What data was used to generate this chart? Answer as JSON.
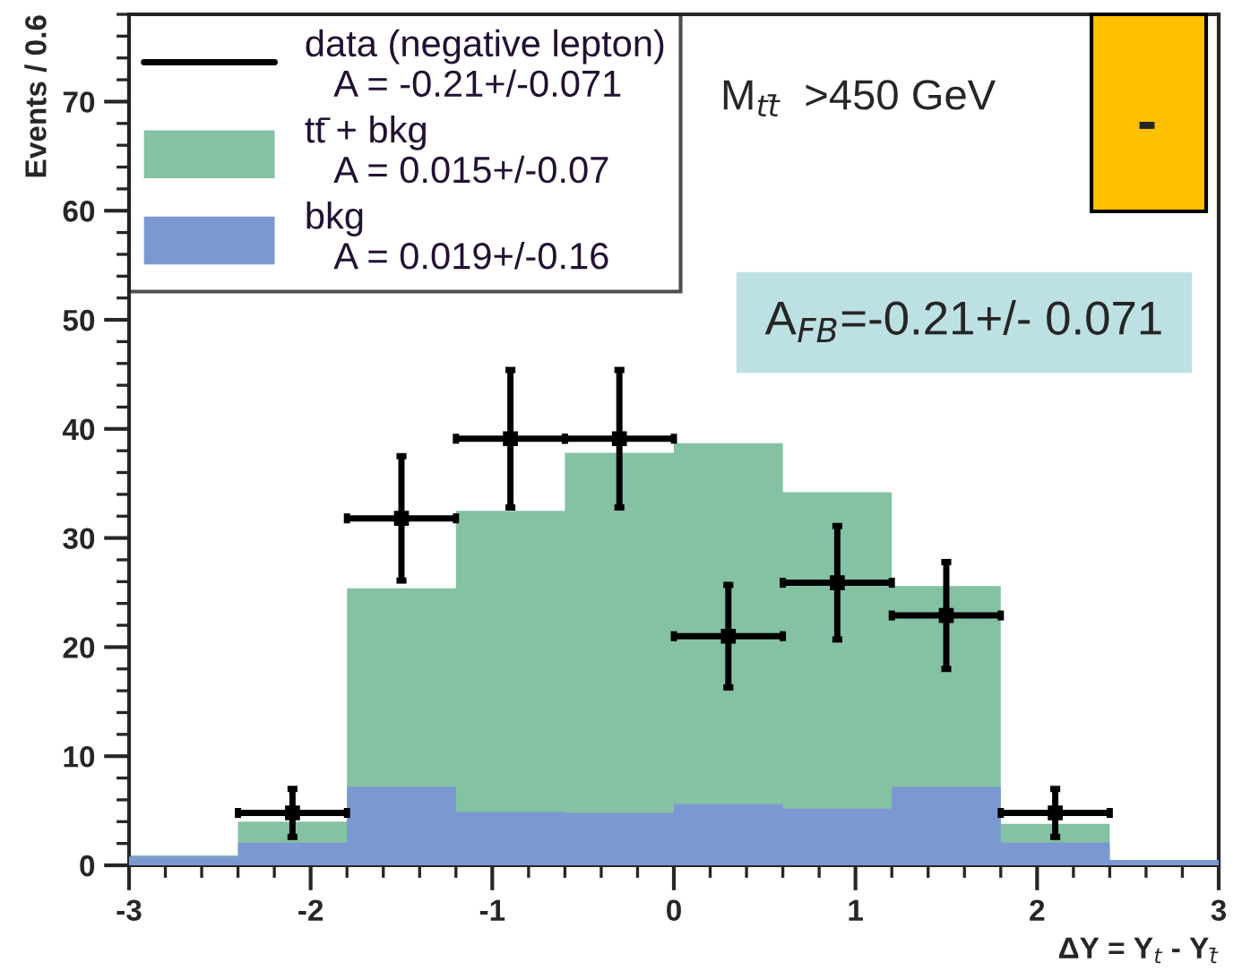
{
  "chart_data": {
    "type": "histogram",
    "xlabel": "ΔY = Y$_{t}$ - Y$_{t̄}$",
    "ylabel": "Events / 0.6",
    "bins": [
      -3,
      -2.4,
      -1.8,
      -1.2,
      -0.6,
      0,
      0.6,
      1.2,
      1.8,
      2.4,
      3
    ],
    "series": [
      {
        "name": "data (negative lepton)\n   A = -0.21+/-0.071",
        "type": "scatter",
        "color": "#000000",
        "x": [
          -2.1,
          -1.5,
          -0.9,
          -0.3,
          0.3,
          0.9,
          1.5,
          2.1
        ],
        "values": [
          4.8,
          31.8,
          39.1,
          39.1,
          21.0,
          25.9,
          22.9,
          4.8
        ],
        "errors": [
          2.2,
          5.7,
          6.3,
          6.3,
          4.7,
          5.2,
          4.9,
          2.2
        ],
        "xerrors": [
          0.3,
          0.3,
          0.3,
          0.3,
          0.3,
          0.3,
          0.3,
          0.3
        ]
      },
      {
        "name": "tt̄ + bkg\n   A = 0.015+/-0.07",
        "color": "#85c1a3",
        "values": [
          0.9,
          4.0,
          25.4,
          32.5,
          37.8,
          38.7,
          34.2,
          25.6,
          3.8,
          0.5
        ]
      },
      {
        "name": "bkg\n   A = 0.019+/-0.16",
        "color": "#7b99d0",
        "values": [
          0.8,
          2.1,
          7.2,
          4.9,
          4.8,
          5.6,
          5.2,
          7.2,
          2.1,
          0.5
        ]
      }
    ],
    "xlim": [
      -3,
      3
    ],
    "xticks": [
      -3,
      -2,
      -1,
      0,
      1,
      2,
      3
    ],
    "ylim": [
      0,
      78
    ],
    "yticks": [
      0,
      10,
      20,
      30,
      40,
      50,
      60,
      70
    ],
    "legend": "top left",
    "grid": false,
    "marker": "square",
    "annotations": [
      "M$_{tt̄}$  >450 GeV",
      "-",
      "A$_{FB}$=-0.21+/- 0.071"
    ]
  }
}
